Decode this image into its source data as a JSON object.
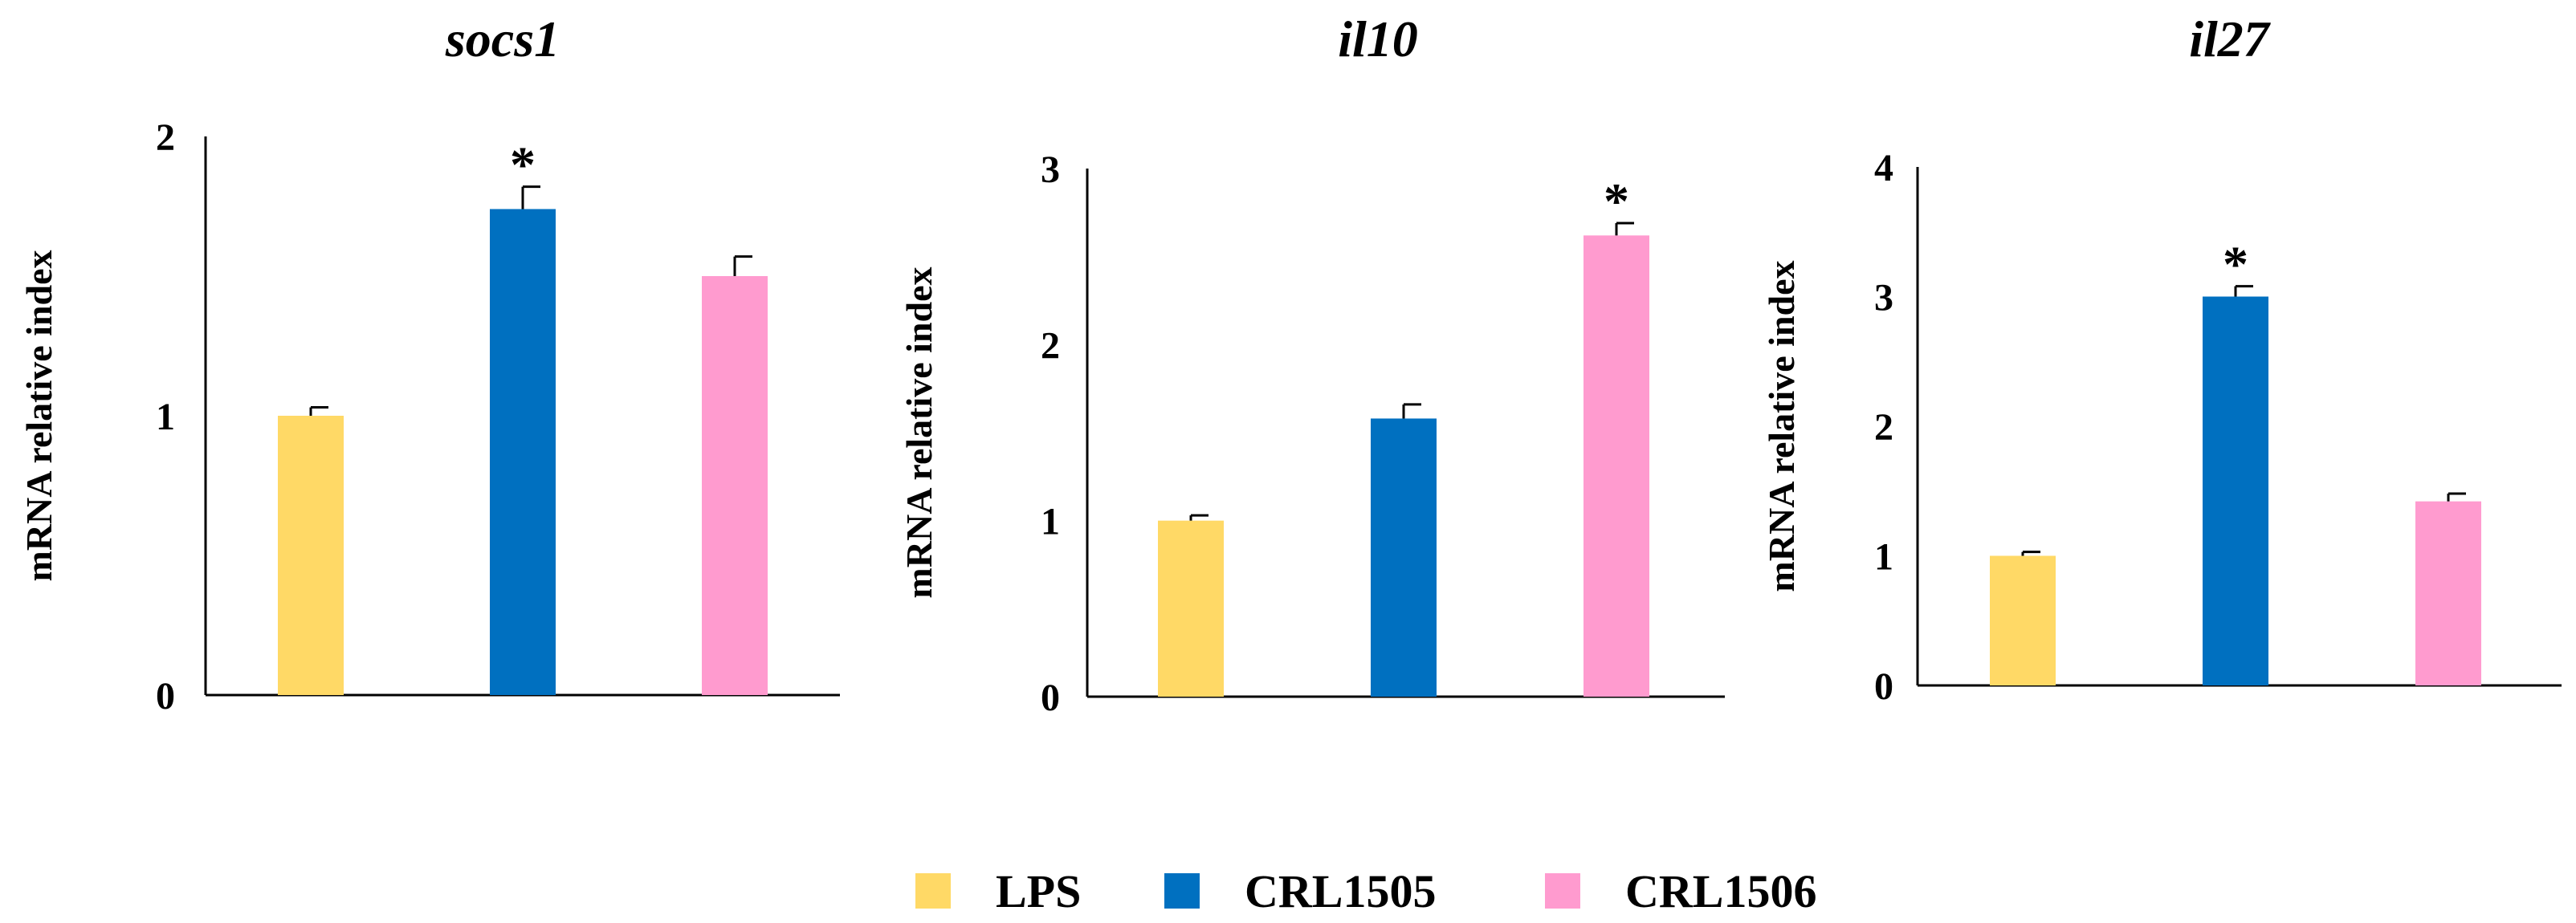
{
  "chart_data": [
    {
      "type": "bar",
      "title": "socs1",
      "ylabel": "mRNA relative index",
      "xlabel": "",
      "categories": [
        "LPS",
        "CRL1505",
        "CRL1506"
      ],
      "values": [
        1.0,
        1.74,
        1.5
      ],
      "errors": [
        0.03,
        0.08,
        0.07
      ],
      "significance": [
        "",
        "*",
        ""
      ],
      "ylim": [
        0,
        2
      ],
      "yticks": [
        "0",
        "1",
        "2"
      ],
      "colors": [
        "#FFD966",
        "#0070C0",
        "#FF9BCF"
      ]
    },
    {
      "type": "bar",
      "title": "il10",
      "ylabel": "mRNA relative index",
      "xlabel": "",
      "categories": [
        "LPS",
        "CRL1505",
        "CRL1506"
      ],
      "values": [
        1.0,
        1.58,
        2.62
      ],
      "errors": [
        0.03,
        0.08,
        0.07
      ],
      "significance": [
        "",
        "",
        "*"
      ],
      "ylim": [
        0,
        3
      ],
      "yticks": [
        "0",
        "1",
        "2",
        "3"
      ],
      "colors": [
        "#FFD966",
        "#0070C0",
        "#FF9BCF"
      ]
    },
    {
      "type": "bar",
      "title": "il27",
      "ylabel": "mRNA relative index",
      "xlabel": "",
      "categories": [
        "LPS",
        "CRL1505",
        "CRL1506"
      ],
      "values": [
        1.0,
        3.0,
        1.42
      ],
      "errors": [
        0.03,
        0.08,
        0.06
      ],
      "significance": [
        "",
        "*",
        ""
      ],
      "ylim": [
        0,
        4
      ],
      "yticks": [
        "0",
        "1",
        "2",
        "3",
        "4"
      ],
      "colors": [
        "#FFD966",
        "#0070C0",
        "#FF9BCF"
      ]
    }
  ],
  "legend": {
    "position": "bottom-center",
    "items": [
      {
        "label": "LPS",
        "color": "#FFD966"
      },
      {
        "label": "CRL1505",
        "color": "#0070C0"
      },
      {
        "label": "CRL1506",
        "color": "#FF9BCF"
      }
    ]
  }
}
